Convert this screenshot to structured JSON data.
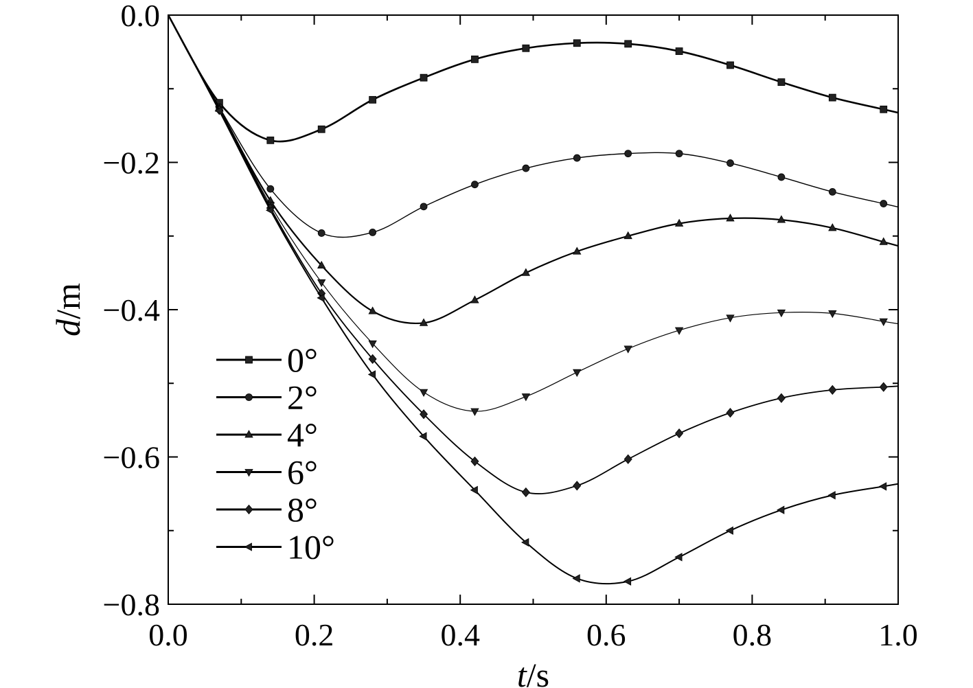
{
  "chart_data": {
    "type": "line",
    "xlabel": {
      "italic": "t",
      "unit": "/s"
    },
    "ylabel": {
      "italic": "d",
      "unit": "/m"
    },
    "xlim": [
      0.0,
      1.0
    ],
    "ylim": [
      -0.8,
      0.0
    ],
    "x_ticks": [
      "0.0",
      "0.2",
      "0.4",
      "0.6",
      "0.8",
      "1.0"
    ],
    "y_ticks": [
      "0.0",
      "−0.2",
      "−0.4",
      "−0.6",
      "−0.8"
    ],
    "x": [
      0.0,
      0.07,
      0.14,
      0.21,
      0.28,
      0.35,
      0.42,
      0.49,
      0.56,
      0.63,
      0.7,
      0.77,
      0.84,
      0.91,
      0.98
    ],
    "legend_position": "lower-left",
    "series": [
      {
        "name": "0°",
        "marker": "square",
        "values": [
          0.0,
          -0.119,
          -0.17,
          -0.155,
          -0.115,
          -0.085,
          -0.06,
          -0.045,
          -0.038,
          -0.039,
          -0.049,
          -0.068,
          -0.091,
          -0.112,
          -0.128
        ]
      },
      {
        "name": "2°",
        "marker": "circle",
        "values": [
          0.0,
          -0.125,
          -0.236,
          -0.296,
          -0.295,
          -0.26,
          -0.23,
          -0.208,
          -0.194,
          -0.188,
          -0.188,
          -0.201,
          -0.22,
          -0.24,
          -0.256
        ]
      },
      {
        "name": "4°",
        "marker": "triangle-up",
        "values": [
          0.0,
          -0.127,
          -0.252,
          -0.34,
          -0.402,
          -0.418,
          -0.387,
          -0.35,
          -0.321,
          -0.3,
          -0.283,
          -0.276,
          -0.278,
          -0.289,
          -0.308
        ]
      },
      {
        "name": "6°",
        "marker": "triangle-down",
        "values": [
          0.0,
          -0.128,
          -0.258,
          -0.363,
          -0.446,
          -0.512,
          -0.538,
          -0.518,
          -0.485,
          -0.453,
          -0.428,
          -0.411,
          -0.404,
          -0.405,
          -0.416
        ]
      },
      {
        "name": "8°",
        "marker": "diamond",
        "values": [
          0.0,
          -0.129,
          -0.262,
          -0.378,
          -0.467,
          -0.542,
          -0.606,
          -0.648,
          -0.639,
          -0.603,
          -0.568,
          -0.54,
          -0.52,
          -0.509,
          -0.505
        ]
      },
      {
        "name": "10°",
        "marker": "triangle-left",
        "values": [
          0.0,
          -0.13,
          -0.265,
          -0.384,
          -0.488,
          -0.572,
          -0.645,
          -0.716,
          -0.765,
          -0.769,
          -0.736,
          -0.7,
          -0.672,
          -0.652,
          -0.64
        ]
      }
    ]
  }
}
